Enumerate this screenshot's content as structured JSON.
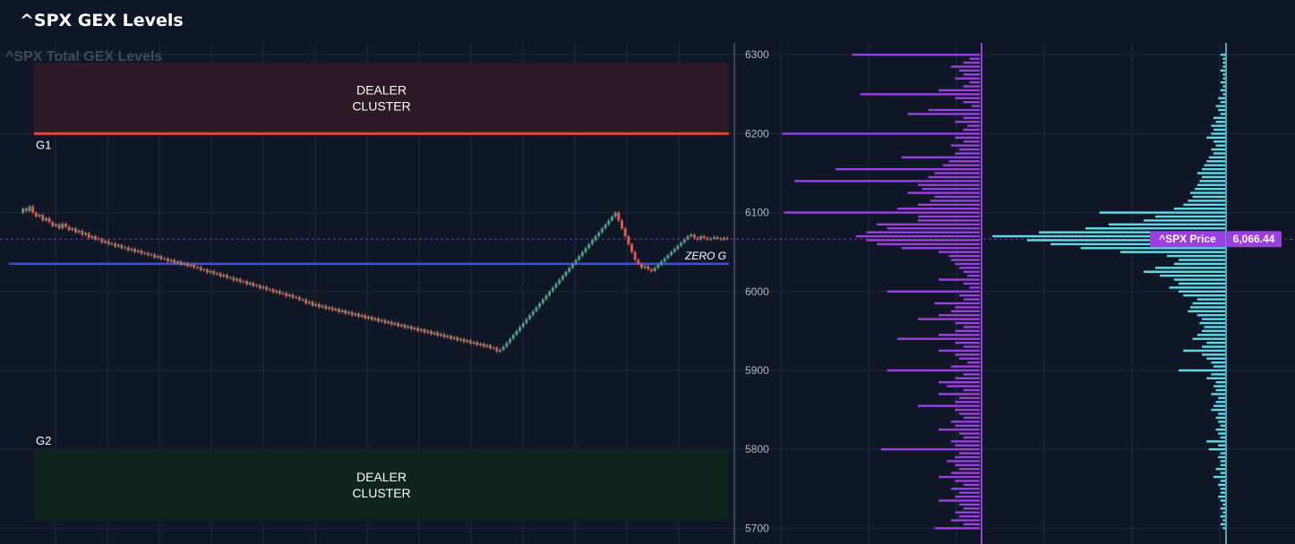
{
  "page": {
    "title": "^SPX GEX Levels"
  },
  "chart_data": {
    "type": "line",
    "title": "^SPX Total GEX Levels",
    "ylim": [
      5680,
      6315
    ],
    "y_ticks": [
      6300,
      6200,
      6100,
      6000,
      5900,
      5800,
      5700
    ],
    "grid": true,
    "levels": {
      "g1": {
        "label": "G1",
        "value": 6200
      },
      "g2": {
        "label": "G2",
        "value": 5800
      },
      "zero_gamma": {
        "label": "ZERO G",
        "value": 6035
      },
      "upper_cluster": {
        "label_lines": [
          "DEALER",
          "CLUSTER"
        ],
        "from": 6200,
        "to": 6290
      },
      "lower_cluster": {
        "label_lines": [
          "DEALER",
          "CLUSTER"
        ],
        "from": 5710,
        "to": 5800
      }
    },
    "current_price": {
      "label": "^SPX Price",
      "value": 6066.44,
      "display": "6,066.44"
    },
    "price_series": {
      "name": "^SPX",
      "values": [
        6100,
        6105,
        6102,
        6108,
        6100,
        6095,
        6097,
        6090,
        6093,
        6088,
        6083,
        6085,
        6080,
        6086,
        6082,
        6078,
        6080,
        6075,
        6077,
        6072,
        6074,
        6068,
        6070,
        6066,
        6067,
        6062,
        6064,
        6060,
        6061,
        6057,
        6059,
        6055,
        6056,
        6052,
        6054,
        6050,
        6052,
        6048,
        6049,
        6046,
        6047,
        6043,
        6045,
        6041,
        6042,
        6038,
        6040,
        6036,
        6038,
        6034,
        6036,
        6032,
        6034,
        6030,
        6031,
        6027,
        6028,
        6024,
        6026,
        6022,
        6023,
        6019,
        6021,
        6017,
        6018,
        6014,
        6016,
        6012,
        6013,
        6009,
        6011,
        6007,
        6008,
        6004,
        6006,
        6002,
        6003,
        5999,
        6001,
        5997,
        5998,
        5994,
        5996,
        5992,
        5993,
        5989,
        5990,
        5985,
        5987,
        5982,
        5984,
        5980,
        5982,
        5978,
        5980,
        5976,
        5978,
        5974,
        5976,
        5972,
        5974,
        5970,
        5972,
        5968,
        5970,
        5966,
        5968,
        5964,
        5966,
        5962,
        5964,
        5960,
        5962,
        5958,
        5960,
        5956,
        5958,
        5954,
        5956,
        5952,
        5954,
        5950,
        5952,
        5948,
        5950,
        5946,
        5948,
        5944,
        5946,
        5942,
        5944,
        5940,
        5942,
        5938,
        5940,
        5936,
        5938,
        5934,
        5936,
        5932,
        5934,
        5930,
        5932,
        5928,
        5929,
        5924,
        5926,
        5930,
        5935,
        5940,
        5945,
        5950,
        5955,
        5960,
        5965,
        5970,
        5975,
        5980,
        5985,
        5990,
        5995,
        6000,
        6005,
        6010,
        6015,
        6020,
        6025,
        6030,
        6035,
        6040,
        6045,
        6050,
        6055,
        6060,
        6065,
        6070,
        6075,
        6080,
        6085,
        6090,
        6095,
        6100,
        6090,
        6080,
        6070,
        6060,
        6050,
        6040,
        6035,
        6030,
        6032,
        6028,
        6026,
        6030,
        6034,
        6038,
        6042,
        6046,
        6050,
        6054,
        6058,
        6062,
        6066,
        6070,
        6072,
        6068,
        6066,
        6070,
        6068,
        6066,
        6067,
        6069,
        6067,
        6066,
        6068,
        6067
      ],
      "_note": ""
    },
    "purple_profile": {
      "name": "",
      "color": "#9b3fe0",
      "strikes": [
        6300,
        6295,
        6290,
        6285,
        6280,
        6275,
        6270,
        6265,
        6260,
        6255,
        6250,
        6245,
        6240,
        6235,
        6230,
        6225,
        6220,
        6215,
        6210,
        6205,
        6200,
        6195,
        6190,
        6185,
        6180,
        6175,
        6170,
        6165,
        6160,
        6155,
        6150,
        6145,
        6140,
        6135,
        6130,
        6125,
        6120,
        6115,
        6110,
        6105,
        6100,
        6095,
        6090,
        6085,
        6080,
        6075,
        6070,
        6065,
        6060,
        6055,
        6050,
        6045,
        6040,
        6035,
        6030,
        6025,
        6020,
        6015,
        6010,
        6005,
        6000,
        5995,
        5990,
        5985,
        5980,
        5975,
        5970,
        5965,
        5960,
        5955,
        5950,
        5945,
        5940,
        5935,
        5930,
        5925,
        5920,
        5915,
        5910,
        5905,
        5900,
        5895,
        5890,
        5885,
        5880,
        5875,
        5870,
        5865,
        5860,
        5855,
        5850,
        5845,
        5840,
        5835,
        5830,
        5825,
        5820,
        5815,
        5810,
        5805,
        5800,
        5795,
        5790,
        5785,
        5780,
        5775,
        5770,
        5765,
        5760,
        5755,
        5750,
        5745,
        5740,
        5735,
        5730,
        5725,
        5720,
        5715,
        5710,
        5705,
        5700
      ],
      "values": [
        0.62,
        0.05,
        0.08,
        0.14,
        0.1,
        0.08,
        0.12,
        0.05,
        0.08,
        0.2,
        0.58,
        0.12,
        0.08,
        0.04,
        0.25,
        0.35,
        0.08,
        0.12,
        0.06,
        0.08,
        0.96,
        0.12,
        0.08,
        0.14,
        0.1,
        0.12,
        0.38,
        0.15,
        0.18,
        0.7,
        0.22,
        0.25,
        0.9,
        0.3,
        0.28,
        0.35,
        0.22,
        0.24,
        0.3,
        0.4,
        0.95,
        0.3,
        0.3,
        0.5,
        0.45,
        0.55,
        0.6,
        0.55,
        0.5,
        0.38,
        0.2,
        0.15,
        0.14,
        0.12,
        0.1,
        0.08,
        0.06,
        0.2,
        0.08,
        0.05,
        0.45,
        0.1,
        0.08,
        0.22,
        0.12,
        0.14,
        0.2,
        0.3,
        0.12,
        0.08,
        0.12,
        0.2,
        0.4,
        0.12,
        0.08,
        0.2,
        0.12,
        0.1,
        0.06,
        0.14,
        0.45,
        0.08,
        0.12,
        0.2,
        0.16,
        0.08,
        0.2,
        0.1,
        0.12,
        0.3,
        0.12,
        0.1,
        0.08,
        0.14,
        0.12,
        0.2,
        0.1,
        0.08,
        0.14,
        0.12,
        0.48,
        0.1,
        0.12,
        0.16,
        0.12,
        0.1,
        0.14,
        0.2,
        0.12,
        0.08,
        0.14,
        0.1,
        0.12,
        0.2,
        0.1,
        0.08,
        0.12,
        0.1,
        0.14,
        0.08,
        0.22
      ]
    },
    "cyan_profile": {
      "name": "",
      "color": "#5fdbe8",
      "strikes": [
        6300,
        6295,
        6290,
        6285,
        6280,
        6275,
        6270,
        6265,
        6260,
        6255,
        6250,
        6245,
        6240,
        6235,
        6230,
        6225,
        6220,
        6215,
        6210,
        6205,
        6200,
        6195,
        6190,
        6185,
        6180,
        6175,
        6170,
        6165,
        6160,
        6155,
        6150,
        6145,
        6140,
        6135,
        6130,
        6125,
        6120,
        6115,
        6110,
        6105,
        6100,
        6095,
        6090,
        6085,
        6080,
        6075,
        6070,
        6065,
        6060,
        6055,
        6050,
        6045,
        6040,
        6035,
        6030,
        6025,
        6020,
        6015,
        6010,
        6005,
        6000,
        5995,
        5990,
        5985,
        5980,
        5975,
        5970,
        5965,
        5960,
        5955,
        5950,
        5945,
        5940,
        5935,
        5930,
        5925,
        5920,
        5915,
        5910,
        5905,
        5900,
        5895,
        5890,
        5885,
        5880,
        5875,
        5870,
        5865,
        5860,
        5855,
        5850,
        5845,
        5840,
        5835,
        5830,
        5825,
        5820,
        5815,
        5810,
        5805,
        5800,
        5795,
        5790,
        5785,
        5780,
        5775,
        5770,
        5765,
        5760,
        5755,
        5750,
        5745,
        5740,
        5735,
        5730,
        5725,
        5720,
        5715,
        5710,
        5705,
        5700
      ],
      "values": [
        0.02,
        0.01,
        0.01,
        0.01,
        0.02,
        0.01,
        0.01,
        0.02,
        0.01,
        0.02,
        0.01,
        0.03,
        0.02,
        0.04,
        0.03,
        0.02,
        0.05,
        0.04,
        0.06,
        0.05,
        0.06,
        0.08,
        0.05,
        0.04,
        0.06,
        0.05,
        0.07,
        0.08,
        0.09,
        0.1,
        0.12,
        0.1,
        0.11,
        0.12,
        0.13,
        0.15,
        0.14,
        0.16,
        0.18,
        0.22,
        0.54,
        0.3,
        0.35,
        0.5,
        0.6,
        0.8,
        1.0,
        0.85,
        0.75,
        0.62,
        0.45,
        0.25,
        0.2,
        0.22,
        0.3,
        0.35,
        0.28,
        0.22,
        0.2,
        0.24,
        0.2,
        0.18,
        0.12,
        0.14,
        0.15,
        0.16,
        0.12,
        0.1,
        0.11,
        0.09,
        0.1,
        0.12,
        0.14,
        0.08,
        0.1,
        0.18,
        0.1,
        0.08,
        0.06,
        0.05,
        0.2,
        0.06,
        0.08,
        0.04,
        0.05,
        0.04,
        0.06,
        0.03,
        0.04,
        0.05,
        0.06,
        0.03,
        0.04,
        0.03,
        0.02,
        0.04,
        0.03,
        0.02,
        0.08,
        0.03,
        0.07,
        0.02,
        0.03,
        0.02,
        0.02,
        0.04,
        0.02,
        0.05,
        0.02,
        0.03,
        0.02,
        0.02,
        0.03,
        0.02,
        0.01,
        0.02,
        0.01,
        0.02,
        0.01,
        0.02,
        0.01
      ]
    },
    "colors": {
      "background": "#0f1726",
      "grid": "#1e2838",
      "g1_line": "#d8483a",
      "upper_cluster_fill": "#2c1a26",
      "lower_cluster_fill": "#10241e",
      "zero_g_line": "#3b4ee8",
      "candle_up": "#4d9a80",
      "candle_down": "#e0574a",
      "price_tag": "#9b3fe0"
    }
  }
}
